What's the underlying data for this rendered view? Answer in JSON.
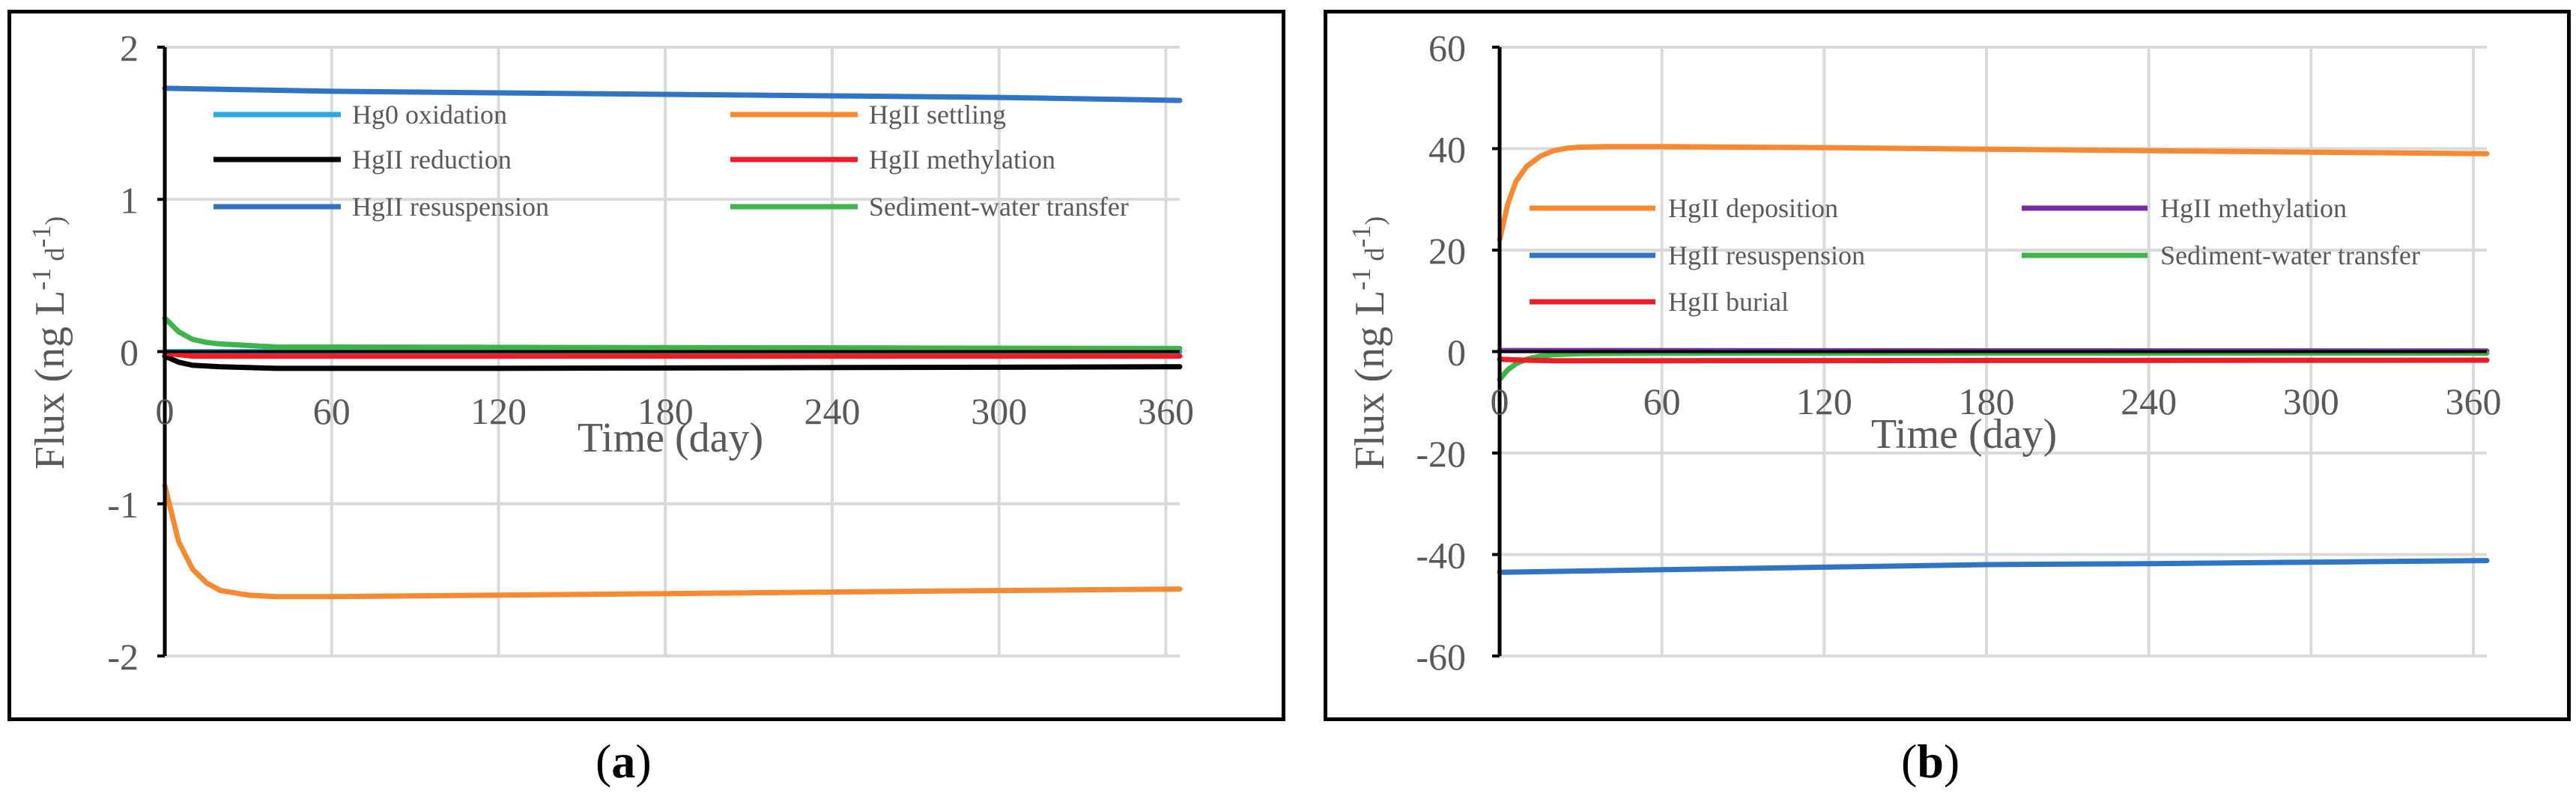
{
  "captions": {
    "a": {
      "open": "(",
      "letter": "a",
      "close": ")"
    },
    "b": {
      "open": "(",
      "letter": "b",
      "close": ")"
    }
  },
  "chart_data": [
    {
      "type": "line",
      "panel": "a",
      "title": "",
      "xlabel": "Time (day)",
      "ylabel": "Flux (ng L-1 d-1)",
      "ylabel_parts": {
        "main": "Flux (ng L",
        "sup1": "-1",
        "mid": " d",
        "sup2": "-1",
        "end": ")"
      },
      "xlim": [
        0,
        365
      ],
      "ylim": [
        -2,
        2
      ],
      "xticks": [
        0,
        60,
        120,
        180,
        240,
        300,
        360
      ],
      "xtick_labels": [
        "0",
        "60",
        "120",
        "180",
        "240",
        "300",
        "360"
      ],
      "yticks": [
        -2,
        -1,
        0,
        1,
        2
      ],
      "ytick_labels": [
        "-2",
        "-1",
        "0",
        "1",
        "2"
      ],
      "grid": true,
      "legend_position": "top",
      "series": [
        {
          "name": "Hg0 oxidation",
          "color": "#29a9e1",
          "x": [
            0,
            365
          ],
          "y": [
            0.0,
            0.0
          ]
        },
        {
          "name": "HgII settling",
          "color": "#f58a31",
          "x": [
            0,
            5,
            10,
            15,
            20,
            30,
            40,
            60,
            120,
            180,
            240,
            300,
            365
          ],
          "y": [
            -0.88,
            -1.25,
            -1.43,
            -1.52,
            -1.57,
            -1.6,
            -1.61,
            -1.61,
            -1.6,
            -1.59,
            -1.58,
            -1.57,
            -1.56
          ]
        },
        {
          "name": "HgII reduction",
          "color": "#000000",
          "x": [
            0,
            5,
            10,
            20,
            40,
            60,
            120,
            365
          ],
          "y": [
            -0.03,
            -0.07,
            -0.09,
            -0.1,
            -0.11,
            -0.11,
            -0.11,
            -0.1
          ]
        },
        {
          "name": "HgII methylation",
          "color": "#ee1c24",
          "x": [
            0,
            5,
            10,
            20,
            40,
            365
          ],
          "y": [
            -0.01,
            -0.02,
            -0.03,
            -0.03,
            -0.03,
            -0.03
          ]
        },
        {
          "name": "HgII resuspension",
          "color": "#2e75c6",
          "x": [
            0,
            60,
            120,
            180,
            240,
            300,
            365
          ],
          "y": [
            1.73,
            1.71,
            1.7,
            1.69,
            1.68,
            1.67,
            1.65
          ]
        },
        {
          "name": "Sediment-water transfer",
          "color": "#3eb44a",
          "x": [
            0,
            5,
            10,
            15,
            20,
            30,
            40,
            60,
            365
          ],
          "y": [
            0.22,
            0.13,
            0.08,
            0.06,
            0.05,
            0.04,
            0.03,
            0.03,
            0.02
          ]
        }
      ]
    },
    {
      "type": "line",
      "panel": "b",
      "title": "",
      "xlabel": "Time (day)",
      "ylabel": "Flux (ng L-1 d-1)",
      "ylabel_parts": {
        "main": "Flux (ng L",
        "sup1": "-1",
        "mid": " d",
        "sup2": "-1",
        "end": ")"
      },
      "xlim": [
        0,
        365
      ],
      "ylim": [
        -60,
        60
      ],
      "xticks": [
        0,
        60,
        120,
        180,
        240,
        300,
        360
      ],
      "xtick_labels": [
        "0",
        "60",
        "120",
        "180",
        "240",
        "300",
        "360"
      ],
      "yticks": [
        -60,
        -40,
        -20,
        0,
        20,
        40,
        60
      ],
      "ytick_labels": [
        "-60",
        "-40",
        "-20",
        "0",
        "20",
        "40",
        "60"
      ],
      "grid": true,
      "legend_position": "middle",
      "series": [
        {
          "name": "HgII deposition",
          "color": "#f58a31",
          "x": [
            0,
            3,
            6,
            10,
            15,
            20,
            25,
            30,
            40,
            60,
            120,
            180,
            240,
            300,
            365
          ],
          "y": [
            22,
            29,
            33.5,
            36.5,
            38.5,
            39.6,
            40.1,
            40.3,
            40.4,
            40.4,
            40.2,
            39.9,
            39.6,
            39.3,
            39.0
          ]
        },
        {
          "name": "HgII methylation",
          "color": "#7b2f9f",
          "x": [
            0,
            365
          ],
          "y": [
            0.2,
            0.1
          ]
        },
        {
          "name": "HgII resuspension",
          "color": "#2e75c6",
          "x": [
            0,
            60,
            120,
            180,
            240,
            300,
            365
          ],
          "y": [
            -43.5,
            -43.0,
            -42.5,
            -42.0,
            -41.8,
            -41.5,
            -41.2
          ]
        },
        {
          "name": "Sediment-water transfer",
          "color": "#3eb44a",
          "x": [
            0,
            3,
            6,
            10,
            15,
            20,
            30,
            60,
            365
          ],
          "y": [
            -5.5,
            -3.6,
            -2.4,
            -1.5,
            -0.9,
            -0.6,
            -0.4,
            -0.3,
            -0.3
          ]
        },
        {
          "name": "HgII burial",
          "color": "#ee1c24",
          "x": [
            0,
            10,
            20,
            60,
            365
          ],
          "y": [
            -1.5,
            -1.7,
            -1.8,
            -1.8,
            -1.7
          ]
        }
      ]
    }
  ]
}
